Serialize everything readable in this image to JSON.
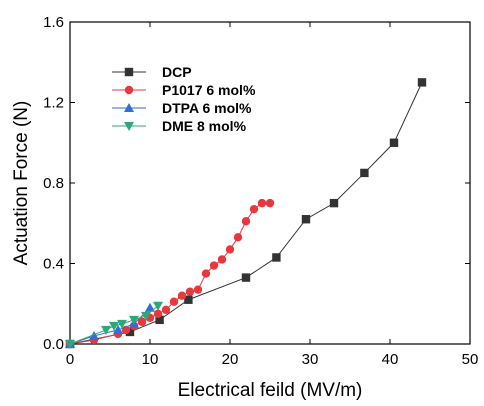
{
  "chart_data": {
    "type": "line",
    "xlabel": "Electrical feild (MV/m)",
    "ylabel": "Actuation Force (N)",
    "xlim": [
      0,
      50
    ],
    "ylim": [
      0,
      1.6
    ],
    "xticks": [
      0,
      10,
      20,
      30,
      40,
      50
    ],
    "yticks": [
      0.0,
      0.4,
      0.8,
      1.2,
      1.6
    ],
    "xtick_labels": [
      "0",
      "10",
      "20",
      "30",
      "40",
      "50"
    ],
    "ytick_labels": [
      "0.0",
      "0.4",
      "0.8",
      "1.2",
      "1.6"
    ],
    "grid": false,
    "legend_position": "top-left",
    "series": [
      {
        "name": "DCP",
        "color": "#333333",
        "marker": "square",
        "x": [
          0,
          7.5,
          11.2,
          14.8,
          22,
          25.8,
          29.5,
          33,
          36.8,
          40.5,
          44
        ],
        "y": [
          0.0,
          0.06,
          0.12,
          0.22,
          0.33,
          0.43,
          0.62,
          0.7,
          0.85,
          1.0,
          1.3
        ]
      },
      {
        "name": "P1017 6 mol%",
        "color": "#e8383d",
        "marker": "circle",
        "x": [
          0,
          3,
          6,
          7,
          8,
          9,
          10,
          11,
          12,
          13,
          14,
          15,
          16,
          17,
          18,
          19,
          20,
          21,
          22,
          23,
          24,
          25
        ],
        "y": [
          0.0,
          0.02,
          0.05,
          0.07,
          0.09,
          0.11,
          0.13,
          0.15,
          0.17,
          0.21,
          0.24,
          0.26,
          0.27,
          0.35,
          0.39,
          0.42,
          0.47,
          0.53,
          0.61,
          0.67,
          0.7,
          0.7
        ]
      },
      {
        "name": "DTPA 6 mol%",
        "color": "#2f6fd6",
        "marker": "triangle-up",
        "x": [
          0,
          3,
          6,
          8,
          10
        ],
        "y": [
          0.0,
          0.04,
          0.07,
          0.1,
          0.18
        ]
      },
      {
        "name": "DME 8 mol%",
        "color": "#2ea77a",
        "marker": "triangle-down",
        "x": [
          0,
          4.5,
          5.5,
          6.5,
          8,
          9.5,
          11
        ],
        "y": [
          0.0,
          0.07,
          0.09,
          0.1,
          0.12,
          0.14,
          0.19
        ]
      }
    ]
  }
}
